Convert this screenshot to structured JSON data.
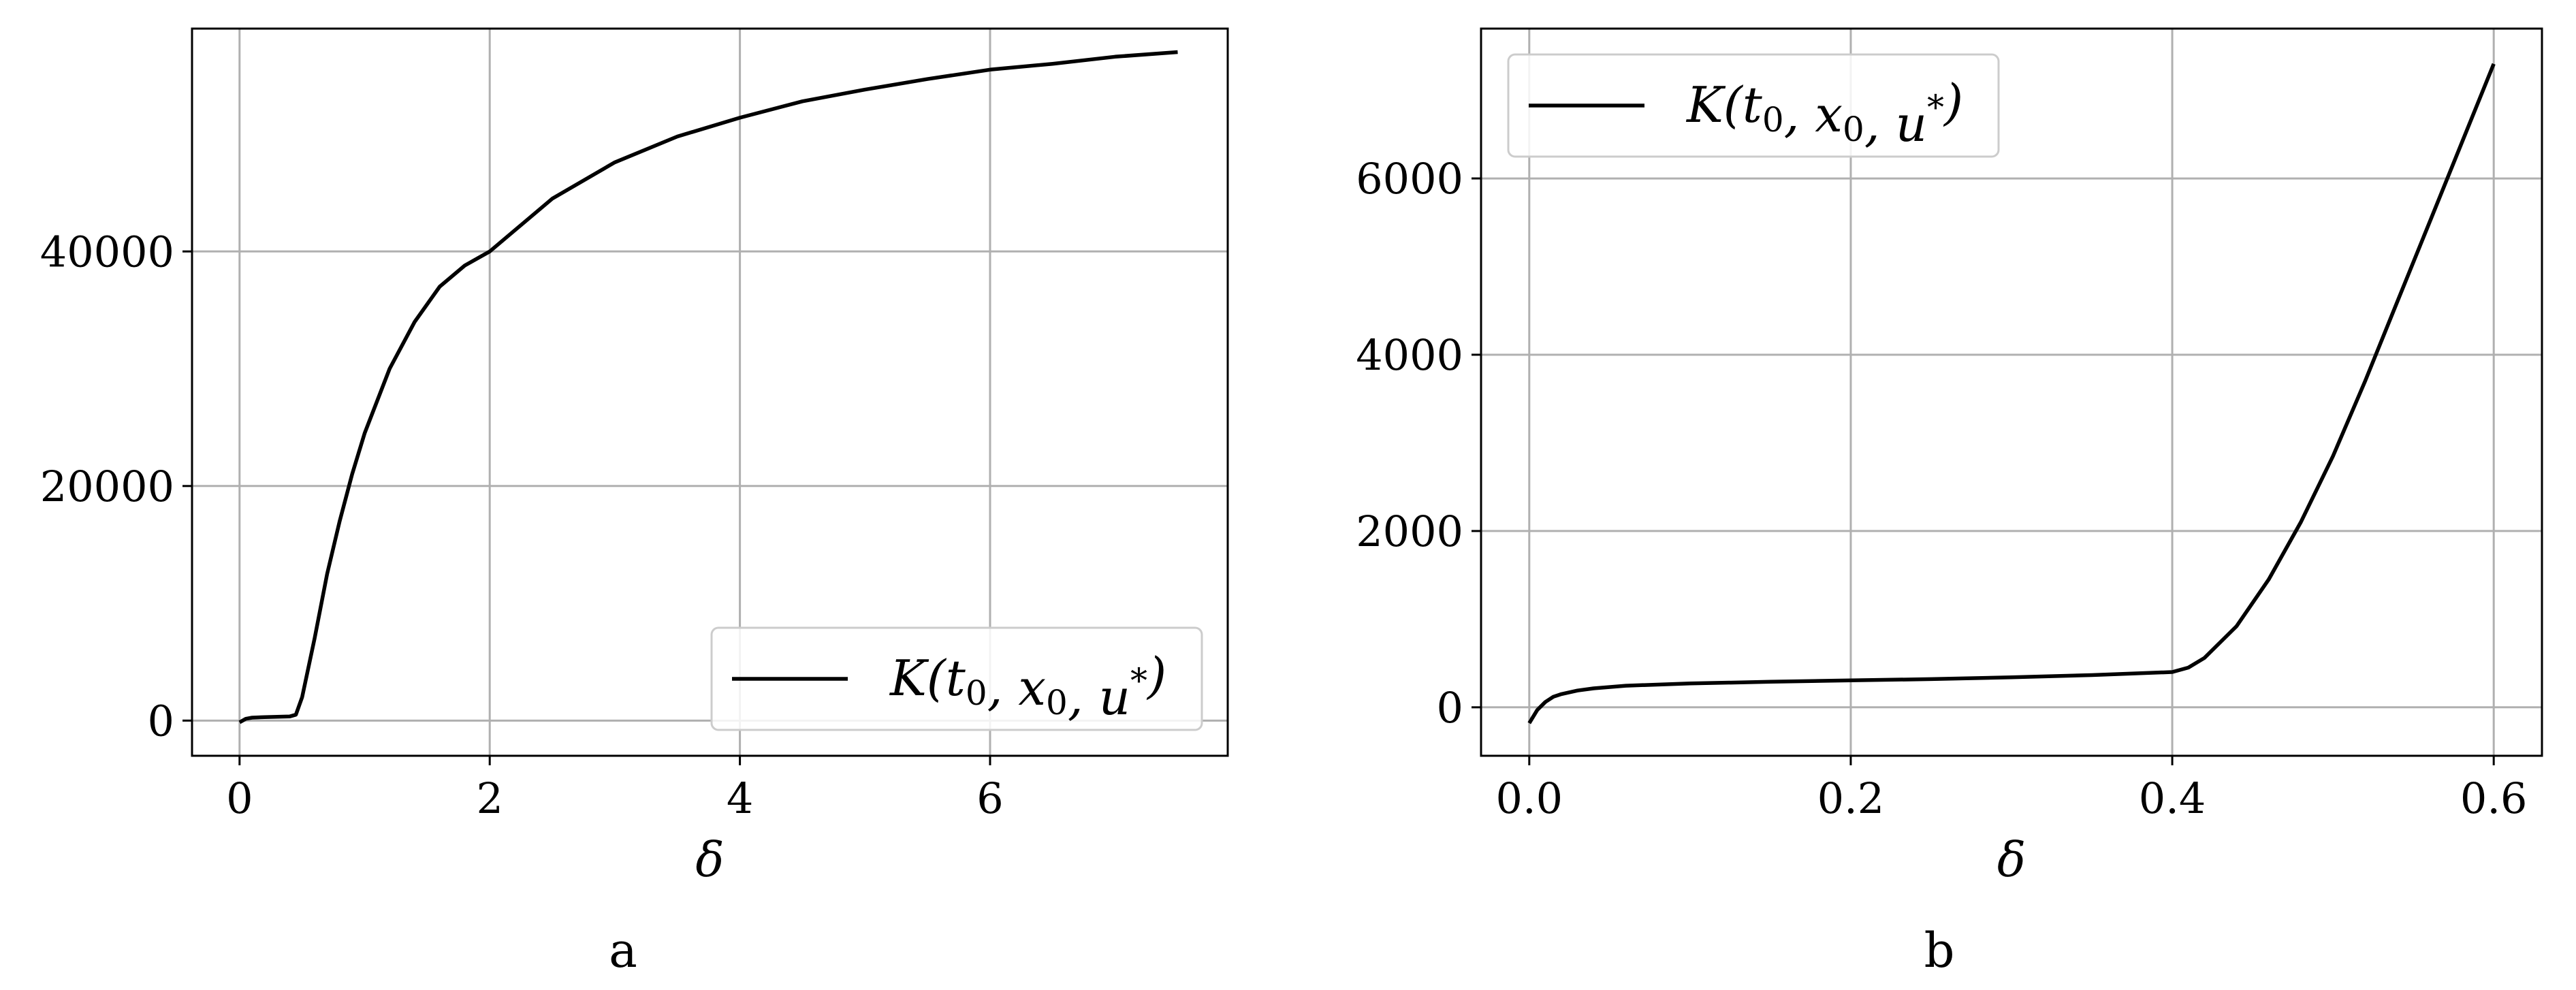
{
  "chart_data": [
    {
      "type": "line",
      "panel_label": "a",
      "xlabel": "δ",
      "ylabel": "",
      "xlim": [
        -0.38,
        7.9
      ],
      "ylim": [
        -3000,
        59000
      ],
      "xticks": [
        0,
        2,
        4,
        6
      ],
      "xtick_labels": [
        "0",
        "2",
        "4",
        "6"
      ],
      "yticks": [
        0,
        20000,
        40000
      ],
      "ytick_labels": [
        "0",
        "20000",
        "40000"
      ],
      "grid": true,
      "legend": {
        "position": "lower-right"
      },
      "series": [
        {
          "name": "K(t0, x0, u*)",
          "color": "#000000",
          "x": [
            0,
            0.05,
            0.1,
            0.2,
            0.3,
            0.4,
            0.45,
            0.5,
            0.6,
            0.7,
            0.8,
            0.9,
            1.0,
            1.2,
            1.4,
            1.6,
            1.8,
            2.0,
            2.5,
            3.0,
            3.5,
            4.0,
            4.5,
            5.0,
            5.5,
            6.0,
            6.5,
            7.0,
            7.5
          ],
          "y": [
            -150,
            150,
            250,
            300,
            320,
            350,
            500,
            2000,
            7000,
            12500,
            17000,
            21000,
            24500,
            30000,
            34000,
            37000,
            38800,
            40000,
            44500,
            47600,
            49800,
            51400,
            52800,
            53800,
            54700,
            55500,
            56000,
            56600,
            57000
          ]
        }
      ]
    },
    {
      "type": "line",
      "panel_label": "b",
      "xlabel": "δ",
      "ylabel": "",
      "xlim": [
        -0.03,
        0.63
      ],
      "ylim": [
        -550,
        7700
      ],
      "xticks": [
        0.0,
        0.2,
        0.4,
        0.6
      ],
      "xtick_labels": [
        "0.0",
        "0.2",
        "0.4",
        "0.6"
      ],
      "yticks": [
        0,
        2000,
        4000,
        6000
      ],
      "ytick_labels": [
        "0",
        "2000",
        "4000",
        "6000"
      ],
      "grid": true,
      "legend": {
        "position": "upper-left"
      },
      "series": [
        {
          "name": "K(t0, x0, u*)",
          "color": "#000000",
          "x": [
            0,
            0.005,
            0.01,
            0.015,
            0.02,
            0.03,
            0.04,
            0.06,
            0.1,
            0.15,
            0.2,
            0.25,
            0.3,
            0.35,
            0.4,
            0.41,
            0.42,
            0.44,
            0.46,
            0.48,
            0.5,
            0.52,
            0.54,
            0.56,
            0.58,
            0.6
          ],
          "y": [
            -180,
            -30,
            60,
            120,
            150,
            190,
            215,
            245,
            270,
            290,
            305,
            320,
            340,
            365,
            400,
            450,
            560,
            920,
            1450,
            2100,
            2850,
            3700,
            4600,
            5500,
            6400,
            7300
          ]
        }
      ]
    }
  ]
}
